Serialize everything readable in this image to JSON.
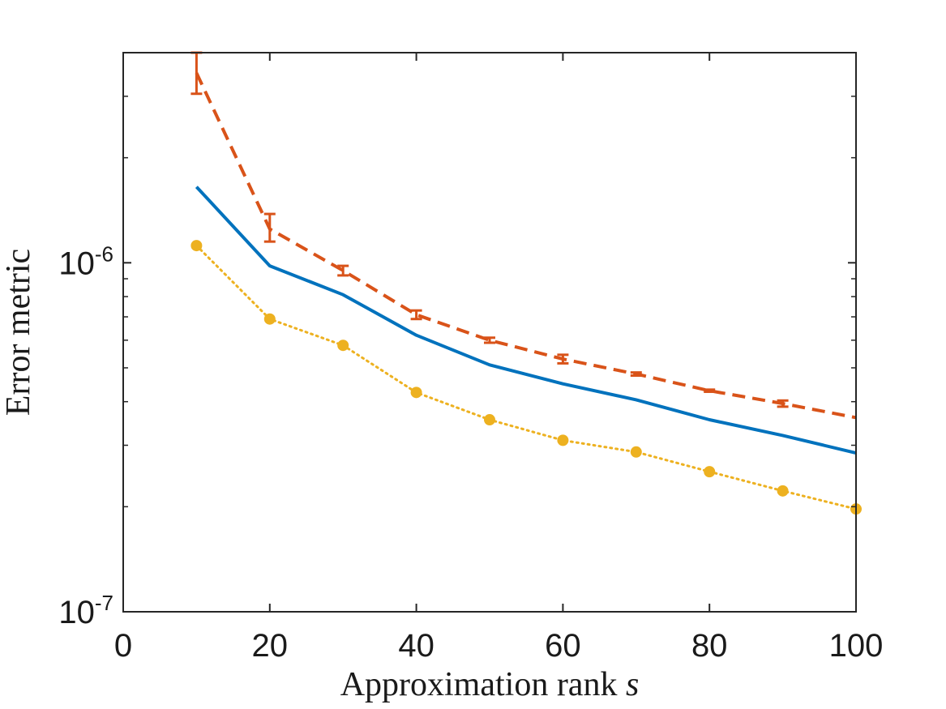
{
  "chart_data": {
    "type": "line",
    "title": "",
    "xlabel": "Approximation rank",
    "xlabel_var": "s",
    "ylabel": "Error metric",
    "xlim": [
      0,
      100
    ],
    "ylim": [
      1e-07,
      4e-06
    ],
    "yscale": "log",
    "grid": false,
    "x_ticks": [
      0,
      20,
      40,
      60,
      80,
      100
    ],
    "x_tick_labels": [
      "0",
      "20",
      "40",
      "60",
      "80",
      "100"
    ],
    "y_ticks": [
      {
        "value": 1e-07,
        "base": "10",
        "exponent": "-7"
      },
      {
        "value": 1e-06,
        "base": "10",
        "exponent": "-6"
      }
    ],
    "x": [
      10,
      20,
      30,
      40,
      50,
      60,
      70,
      80,
      90,
      100
    ],
    "series": [
      {
        "name": "solid",
        "color": "#0072BD",
        "style": "solid",
        "values": [
          1.65e-06,
          9.8e-07,
          8.1e-07,
          6.2e-07,
          5.1e-07,
          4.5e-07,
          4.05e-07,
          3.55e-07,
          3.2e-07,
          2.85e-07
        ]
      },
      {
        "name": "dashed",
        "color": "#D95319",
        "style": "dashed",
        "values": [
          3.5e-06,
          1.25e-06,
          9.5e-07,
          7.1e-07,
          6e-07,
          5.3e-07,
          4.8e-07,
          4.3e-07,
          3.95e-07,
          3.6e-07
        ],
        "err_low": [
          3.05e-06,
          1.15e-06,
          9.2e-07,
          6.9e-07,
          5.9e-07,
          5.15e-07,
          4.75e-07,
          4.27e-07,
          3.87e-07,
          3.6e-07
        ],
        "err_high": [
          4e-06,
          1.38e-06,
          9.8e-07,
          7.3e-07,
          6.1e-07,
          5.45e-07,
          4.85e-07,
          4.33e-07,
          4.03e-07,
          3.6e-07
        ]
      },
      {
        "name": "dotted",
        "color": "#EDB120",
        "style": "dotted",
        "markers": true,
        "values": [
          1.12e-06,
          6.9e-07,
          5.8e-07,
          4.25e-07,
          3.55e-07,
          3.1e-07,
          2.87e-07,
          2.52e-07,
          2.22e-07,
          1.97e-07
        ]
      }
    ]
  }
}
